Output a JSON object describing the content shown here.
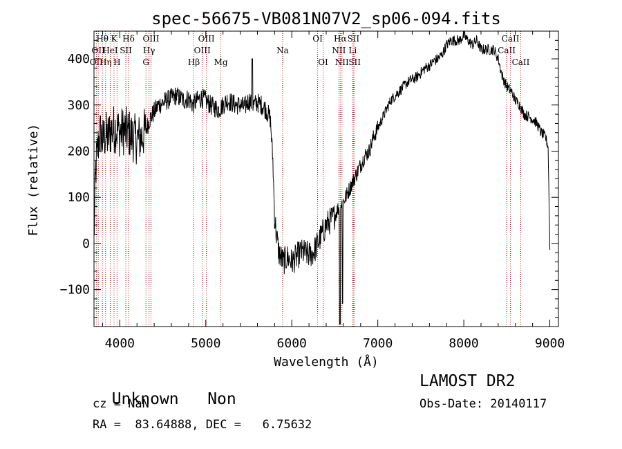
{
  "chart_data": {
    "type": "line",
    "title": "spec-56675-VB081N07V2_sp06-094.fits",
    "xlabel": "Wavelength (Å)",
    "ylabel": "Flux (relative)",
    "xlim": [
      3700,
      9100
    ],
    "ylim": [
      -180,
      460
    ],
    "xticks": [
      4000,
      5000,
      6000,
      7000,
      8000,
      9000
    ],
    "xtick_labels": [
      "4000",
      "5000",
      "6000",
      "7000",
      "8000",
      "9000"
    ],
    "yticks": [
      -100,
      0,
      100,
      200,
      300,
      400
    ],
    "ytick_labels": [
      "−100",
      "0",
      "100",
      "200",
      "300",
      "400"
    ],
    "grid": false,
    "series": [
      {
        "x": [
          3700,
          3720,
          3740,
          3760,
          3780,
          3800,
          3830,
          3860,
          3900,
          3950,
          4000,
          4050,
          4100,
          4150,
          4200,
          4250,
          4300,
          4350,
          4400,
          4450,
          4500,
          4550,
          4600,
          4650,
          4700,
          4750,
          4800,
          4850,
          4900,
          4950,
          5000,
          5050,
          5100,
          5150,
          5200,
          5250,
          5300,
          5350,
          5400,
          5450,
          5500,
          5550,
          5600,
          5650,
          5700,
          5750,
          5780,
          5800,
          5820,
          5850,
          5900,
          5950,
          6000,
          6050,
          6100,
          6150,
          6200,
          6250,
          6300,
          6350,
          6400,
          6450,
          6500,
          6550,
          6600,
          6650,
          6700,
          6750,
          6800,
          6850,
          6900,
          6950,
          7000,
          7050,
          7100,
          7150,
          7200,
          7250,
          7300,
          7350,
          7400,
          7450,
          7500,
          7550,
          7600,
          7650,
          7700,
          7750,
          7800,
          7850,
          7900,
          7950,
          8000,
          8050,
          8100,
          8150,
          8200,
          8250,
          8300,
          8350,
          8400,
          8450,
          8500,
          8550,
          8600,
          8650,
          8700,
          8750,
          8800,
          8850,
          8900,
          8950,
          8980,
          9000
        ],
        "y": [
          10,
          160,
          200,
          230,
          240,
          220,
          235,
          230,
          245,
          250,
          240,
          245,
          240,
          230,
          225,
          230,
          245,
          270,
          285,
          300,
          305,
          310,
          315,
          320,
          315,
          310,
          315,
          300,
          310,
          315,
          310,
          300,
          295,
          290,
          300,
          310,
          305,
          300,
          300,
          295,
          310,
          300,
          305,
          300,
          290,
          270,
          180,
          60,
          20,
          -20,
          -40,
          -30,
          -40,
          -30,
          -20,
          -20,
          -25,
          -20,
          0,
          20,
          40,
          50,
          60,
          80,
          90,
          110,
          130,
          150,
          170,
          190,
          200,
          230,
          250,
          270,
          290,
          310,
          320,
          330,
          340,
          350,
          355,
          360,
          370,
          380,
          385,
          395,
          400,
          410,
          430,
          440,
          440,
          440,
          450,
          440,
          430,
          440,
          420,
          420,
          420,
          420,
          400,
          360,
          340,
          330,
          310,
          300,
          280,
          275,
          270,
          260,
          240,
          230,
          210,
          -10
        ]
      }
    ],
    "lines": [
      {
        "wavelength": 3727,
        "label": "OII",
        "row": 2
      },
      {
        "wavelength": 3750,
        "label": "OII",
        "row": 1
      },
      {
        "wavelength": 3798,
        "label": "Hθ",
        "row": 0
      },
      {
        "wavelength": 3835,
        "label": "Hη",
        "row": 2
      },
      {
        "wavelength": 3889,
        "label": "HeI",
        "row": 1
      },
      {
        "wavelength": 3933,
        "label": "K",
        "row": 0
      },
      {
        "wavelength": 3968,
        "label": "H",
        "row": 2
      },
      {
        "wavelength": 4070,
        "label": "SII",
        "row": 1
      },
      {
        "wavelength": 4102,
        "label": "Hδ",
        "row": 0
      },
      {
        "wavelength": 4304,
        "label": "G",
        "row": 2
      },
      {
        "wavelength": 4340,
        "label": "Hγ",
        "row": 1
      },
      {
        "wavelength": 4363,
        "label": "OIII",
        "row": 0
      },
      {
        "wavelength": 4861,
        "label": "Hβ",
        "row": 2
      },
      {
        "wavelength": 4959,
        "label": "OIII",
        "row": 1
      },
      {
        "wavelength": 5007,
        "label": "OIII",
        "row": 0
      },
      {
        "wavelength": 5175,
        "label": "Mg",
        "row": 2
      },
      {
        "wavelength": 5893,
        "label": "Na",
        "row": 1
      },
      {
        "wavelength": 6300,
        "label": "OI",
        "row": 0
      },
      {
        "wavelength": 6364,
        "label": "OI",
        "row": 2
      },
      {
        "wavelength": 6548,
        "label": "NII",
        "row": 1
      },
      {
        "wavelength": 6563,
        "label": "Hα",
        "row": 0
      },
      {
        "wavelength": 6583,
        "label": "NII",
        "row": 2
      },
      {
        "wavelength": 6708,
        "label": "Li",
        "row": 1
      },
      {
        "wavelength": 6716,
        "label": "SII",
        "row": 0
      },
      {
        "wavelength": 6731,
        "label": "SII",
        "row": 2
      },
      {
        "wavelength": 8498,
        "label": "CaII",
        "row": 1
      },
      {
        "wavelength": 8542,
        "label": "CaII",
        "row": 0
      },
      {
        "wavelength": 8662,
        "label": "CaII",
        "row": 2
      }
    ]
  },
  "info": {
    "class": "Unknown",
    "subclass": "Non",
    "cz": "cz = NaN",
    "radec": "RA =  83.64888, DEC =   6.75632",
    "survey": "LAMOST DR2",
    "obsdate": "Obs-Date: 20140117"
  }
}
